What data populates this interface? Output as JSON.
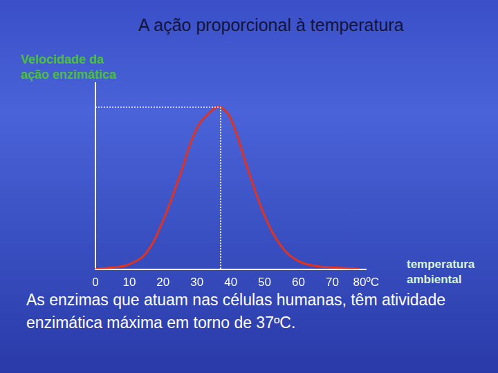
{
  "chart_data": {
    "type": "line",
    "title": "A ação proporcional à temperatura",
    "y_label": "Velocidade da ação enzimática",
    "x_label": "temperatura ambiental",
    "caption": "As enzimas que atuam nas células humanas, têm atividade enzimática máxima em torno de 37ºC.",
    "x": [
      0,
      5,
      10,
      15,
      20,
      25,
      30,
      35,
      37,
      40,
      45,
      50,
      55,
      60,
      65,
      70,
      75,
      78
    ],
    "values": [
      0,
      1,
      3,
      10,
      30,
      58,
      87,
      99,
      100,
      93,
      62,
      33,
      14,
      5,
      2,
      1,
      0.5,
      0
    ],
    "color": "#e2321e",
    "xlim": [
      0,
      80
    ],
    "xticks": [
      0,
      10,
      20,
      30,
      40,
      50,
      60,
      70,
      {
        "value": 80,
        "label": "80ºC"
      }
    ],
    "ylim": [
      0,
      115
    ],
    "grid": false,
    "tick_labels": "x"
  }
}
